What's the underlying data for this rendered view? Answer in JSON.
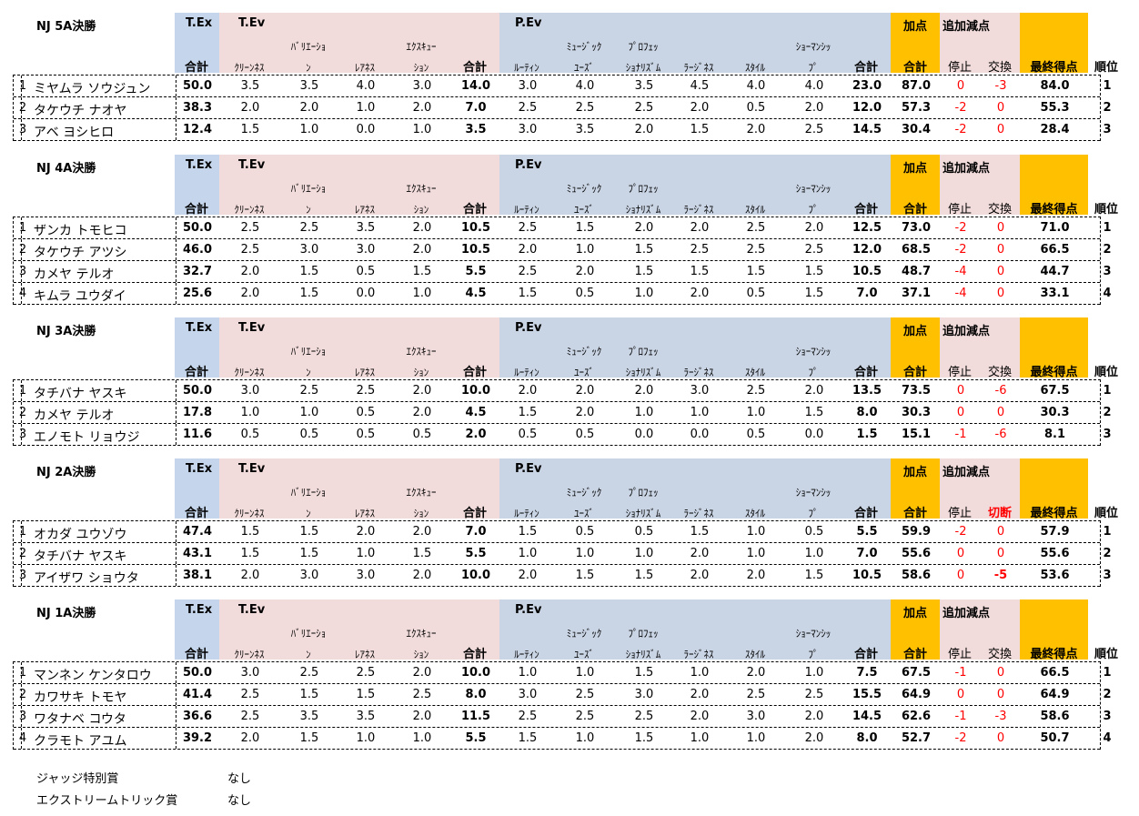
{
  "headers": {
    "tex": "T.Ex",
    "tev": "T.Ev",
    "pev": "P.Ev",
    "katen": "加点",
    "tsuika": "追加減点",
    "sub_tev": [
      "ﾊﾞﾘｴｰｼｮ",
      "ｴｸｽｷｭｰ"
    ],
    "sub_pev": [
      "ﾐｭｰｼﾞｯｸ",
      "ﾌﾟﾛﾌｪｯ",
      "ｼｮｰﾏﾝｼｯ"
    ],
    "row3": {
      "tex_sum": "合計",
      "cleanness": "ｸﾘｰﾝﾈｽ",
      "variation_end": "ﾝ",
      "rareness": "ﾚｱﾈｽ",
      "execution_end": "ｼｮﾝ",
      "tev_sum": "合計",
      "routine": "ﾙｰﾃｨﾝ",
      "music_use": "ﾕｰｽﾞ",
      "prof": "ｼｮﾅﾘｽﾞﾑ",
      "largeness": "ﾗｰｼﾞﾈｽ",
      "style": "ｽﾀｲﾙ",
      "showman_end": "ﾌﾟ",
      "pev_sum": "合計",
      "katen_sum": "合計",
      "stop": "停止",
      "exchange": "交換",
      "final": "最終得点",
      "rank": "順位"
    }
  },
  "sections": [
    {
      "title": "NJ 5A決勝",
      "exchange_label": "交換",
      "exchange_red": false,
      "rows": [
        {
          "no": "1",
          "name": "ミヤムラ ソウジュン",
          "tex": "50.0",
          "c": "3.5",
          "v": "3.5",
          "r": "4.0",
          "e": "3.0",
          "tev": "14.0",
          "ro": "3.0",
          "mu": "4.0",
          "pr": "3.5",
          "la": "4.5",
          "st": "4.0",
          "sh": "4.0",
          "pev": "23.0",
          "kat": "87.0",
          "stop": "0",
          "exch": "-3",
          "final": "84.0",
          "rank": "1"
        },
        {
          "no": "2",
          "name": "タケウチ ナオヤ",
          "tex": "38.3",
          "c": "2.0",
          "v": "2.0",
          "r": "1.0",
          "e": "2.0",
          "tev": "7.0",
          "ro": "2.5",
          "mu": "2.5",
          "pr": "2.5",
          "la": "2.0",
          "st": "0.5",
          "sh": "2.0",
          "pev": "12.0",
          "kat": "57.3",
          "stop": "-2",
          "exch": "0",
          "final": "55.3",
          "rank": "2"
        },
        {
          "no": "3",
          "name": "アベ ヨシヒロ",
          "tex": "12.4",
          "c": "1.5",
          "v": "1.0",
          "r": "0.0",
          "e": "1.0",
          "tev": "3.5",
          "ro": "3.0",
          "mu": "3.5",
          "pr": "2.0",
          "la": "1.5",
          "st": "2.0",
          "sh": "2.5",
          "pev": "14.5",
          "kat": "30.4",
          "stop": "-2",
          "exch": "0",
          "final": "28.4",
          "rank": "3"
        }
      ]
    },
    {
      "title": "NJ 4A決勝",
      "exchange_label": "交換",
      "exchange_red": false,
      "rows": [
        {
          "no": "1",
          "name": "ザンカ トモヒコ",
          "tex": "50.0",
          "c": "2.5",
          "v": "2.5",
          "r": "3.5",
          "e": "2.0",
          "tev": "10.5",
          "ro": "2.5",
          "mu": "1.5",
          "pr": "2.0",
          "la": "2.0",
          "st": "2.5",
          "sh": "2.0",
          "pev": "12.5",
          "kat": "73.0",
          "stop": "-2",
          "exch": "0",
          "final": "71.0",
          "rank": "1"
        },
        {
          "no": "2",
          "name": "タケウチ アツシ",
          "tex": "46.0",
          "c": "2.5",
          "v": "3.0",
          "r": "3.0",
          "e": "2.0",
          "tev": "10.5",
          "ro": "2.0",
          "mu": "1.0",
          "pr": "1.5",
          "la": "2.5",
          "st": "2.5",
          "sh": "2.5",
          "pev": "12.0",
          "kat": "68.5",
          "stop": "-2",
          "exch": "0",
          "final": "66.5",
          "rank": "2"
        },
        {
          "no": "3",
          "name": "カメヤ テルオ",
          "tex": "32.7",
          "c": "2.0",
          "v": "1.5",
          "r": "0.5",
          "e": "1.5",
          "tev": "5.5",
          "ro": "2.5",
          "mu": "2.0",
          "pr": "1.5",
          "la": "1.5",
          "st": "1.5",
          "sh": "1.5",
          "pev": "10.5",
          "kat": "48.7",
          "stop": "-4",
          "exch": "0",
          "final": "44.7",
          "rank": "3"
        },
        {
          "no": "4",
          "name": "キムラ ユウダイ",
          "tex": "25.6",
          "c": "2.0",
          "v": "1.5",
          "r": "0.0",
          "e": "1.0",
          "tev": "4.5",
          "ro": "1.5",
          "mu": "0.5",
          "pr": "1.0",
          "la": "2.0",
          "st": "0.5",
          "sh": "1.5",
          "pev": "7.0",
          "kat": "37.1",
          "stop": "-4",
          "exch": "0",
          "final": "33.1",
          "rank": "4"
        }
      ]
    },
    {
      "title": "NJ 3A決勝",
      "exchange_label": "交換",
      "exchange_red": false,
      "rows": [
        {
          "no": "1",
          "name": "タチバナ ヤスキ",
          "tex": "50.0",
          "c": "3.0",
          "v": "2.5",
          "r": "2.5",
          "e": "2.0",
          "tev": "10.0",
          "ro": "2.0",
          "mu": "2.0",
          "pr": "2.0",
          "la": "3.0",
          "st": "2.5",
          "sh": "2.0",
          "pev": "13.5",
          "kat": "73.5",
          "stop": "0",
          "exch": "-6",
          "final": "67.5",
          "rank": "1"
        },
        {
          "no": "2",
          "name": "カメヤ テルオ",
          "tex": "17.8",
          "c": "1.0",
          "v": "1.0",
          "r": "0.5",
          "e": "2.0",
          "tev": "4.5",
          "ro": "1.5",
          "mu": "2.0",
          "pr": "1.0",
          "la": "1.0",
          "st": "1.0",
          "sh": "1.5",
          "pev": "8.0",
          "kat": "30.3",
          "stop": "0",
          "exch": "0",
          "final": "30.3",
          "rank": "2"
        },
        {
          "no": "3",
          "name": "エノモト リョウジ",
          "tex": "11.6",
          "c": "0.5",
          "v": "0.5",
          "r": "0.5",
          "e": "0.5",
          "tev": "2.0",
          "ro": "0.5",
          "mu": "0.5",
          "pr": "0.0",
          "la": "0.0",
          "st": "0.5",
          "sh": "0.0",
          "pev": "1.5",
          "kat": "15.1",
          "stop": "-1",
          "exch": "-6",
          "final": "8.1",
          "rank": "3"
        }
      ]
    },
    {
      "title": "NJ 2A決勝",
      "exchange_label": "切断",
      "exchange_red": true,
      "rows": [
        {
          "no": "1",
          "name": "オカダ ユウゾウ",
          "tex": "47.4",
          "c": "1.5",
          "v": "1.5",
          "r": "2.0",
          "e": "2.0",
          "tev": "7.0",
          "ro": "1.5",
          "mu": "0.5",
          "pr": "0.5",
          "la": "1.5",
          "st": "1.0",
          "sh": "0.5",
          "pev": "5.5",
          "kat": "59.9",
          "stop": "-2",
          "exch": "0",
          "final": "57.9",
          "rank": "1"
        },
        {
          "no": "2",
          "name": "タチバナ ヤスキ",
          "tex": "43.1",
          "c": "1.5",
          "v": "1.5",
          "r": "1.0",
          "e": "1.5",
          "tev": "5.5",
          "ro": "1.0",
          "mu": "1.0",
          "pr": "1.0",
          "la": "2.0",
          "st": "1.0",
          "sh": "1.0",
          "pev": "7.0",
          "kat": "55.6",
          "stop": "0",
          "exch": "0",
          "final": "55.6",
          "rank": "2"
        },
        {
          "no": "3",
          "name": "アイザワ ショウタ",
          "tex": "38.1",
          "c": "2.0",
          "v": "3.0",
          "r": "3.0",
          "e": "2.0",
          "tev": "10.0",
          "ro": "2.0",
          "mu": "1.5",
          "pr": "1.5",
          "la": "2.0",
          "st": "2.0",
          "sh": "1.5",
          "pev": "10.5",
          "kat": "58.6",
          "stop": "0",
          "exch": "-5",
          "final": "53.6",
          "rank": "3"
        }
      ]
    },
    {
      "title": "NJ 1A決勝",
      "exchange_label": "交換",
      "exchange_red": false,
      "rows": [
        {
          "no": "1",
          "name": "マンネン ケンタロウ",
          "tex": "50.0",
          "c": "3.0",
          "v": "2.5",
          "r": "2.5",
          "e": "2.0",
          "tev": "10.0",
          "ro": "1.0",
          "mu": "1.0",
          "pr": "1.5",
          "la": "1.0",
          "st": "2.0",
          "sh": "1.0",
          "pev": "7.5",
          "kat": "67.5",
          "stop": "-1",
          "exch": "0",
          "final": "66.5",
          "rank": "1"
        },
        {
          "no": "2",
          "name": "カワサキ トモヤ",
          "tex": "41.4",
          "c": "2.5",
          "v": "1.5",
          "r": "1.5",
          "e": "2.5",
          "tev": "8.0",
          "ro": "3.0",
          "mu": "2.5",
          "pr": "3.0",
          "la": "2.0",
          "st": "2.5",
          "sh": "2.5",
          "pev": "15.5",
          "kat": "64.9",
          "stop": "0",
          "exch": "0",
          "final": "64.9",
          "rank": "2"
        },
        {
          "no": "3",
          "name": "ワタナベ コウタ",
          "tex": "36.6",
          "c": "2.5",
          "v": "3.5",
          "r": "3.5",
          "e": "2.0",
          "tev": "11.5",
          "ro": "2.5",
          "mu": "2.5",
          "pr": "2.5",
          "la": "2.0",
          "st": "3.0",
          "sh": "2.0",
          "pev": "14.5",
          "kat": "62.6",
          "stop": "-1",
          "exch": "-3",
          "final": "58.6",
          "rank": "3"
        },
        {
          "no": "4",
          "name": "クラモト アユム",
          "tex": "39.2",
          "c": "2.0",
          "v": "1.5",
          "r": "1.0",
          "e": "1.0",
          "tev": "5.5",
          "ro": "1.5",
          "mu": "1.0",
          "pr": "1.5",
          "la": "1.0",
          "st": "1.0",
          "sh": "2.0",
          "pev": "8.0",
          "kat": "52.7",
          "stop": "-2",
          "exch": "0",
          "final": "50.7",
          "rank": "4"
        }
      ]
    }
  ],
  "footer": [
    {
      "label": "ジャッジ特別賞",
      "value": "なし"
    },
    {
      "label": "エクストリームトリック賞",
      "value": "なし"
    }
  ]
}
